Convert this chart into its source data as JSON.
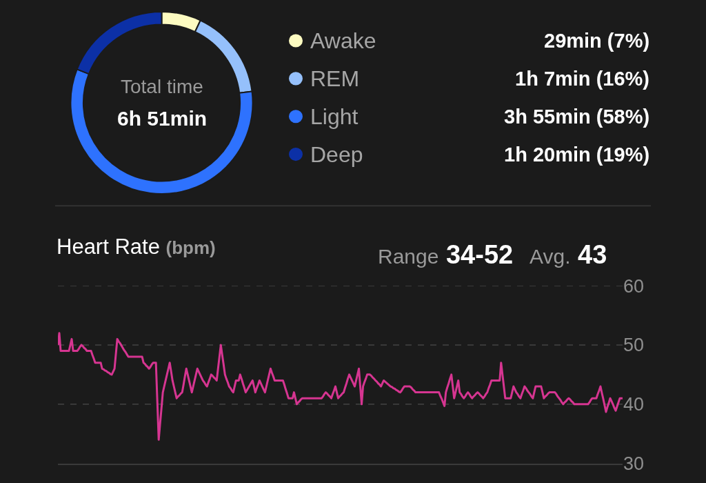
{
  "chart_data": [
    {
      "type": "donut",
      "categories": [
        "Awake",
        "REM",
        "Light",
        "Deep"
      ],
      "values": [
        7,
        16,
        58,
        19
      ],
      "colors": [
        "#fdfbc1",
        "#95c0fb",
        "#2e72fe",
        "#0c30a6"
      ],
      "value_labels": [
        "29min (7%)",
        "1h 7min (16%)",
        "3h 55min (58%)",
        "1h 20min (19%)"
      ],
      "annotations": [
        "Total time",
        "6h 51min"
      ],
      "legend": "right"
    },
    {
      "type": "line",
      "title": "Heart Rate (bpm)",
      "annotations": [
        "Range 34-52",
        "Avg. 43"
      ],
      "categories": [
        null,
        null,
        null,
        null,
        null,
        null,
        null,
        null,
        null,
        null,
        null,
        null,
        null,
        null,
        null,
        null,
        null,
        null,
        null,
        null,
        null,
        null,
        null,
        null,
        null,
        null,
        null,
        null,
        null,
        null,
        null,
        null,
        null,
        null,
        null,
        null,
        null,
        null,
        null,
        null,
        null,
        null,
        null,
        null,
        null,
        null,
        null,
        null,
        null,
        null,
        null,
        null,
        null,
        null,
        null,
        null,
        null,
        null,
        null,
        null,
        null,
        null,
        null,
        null,
        null,
        null,
        null,
        null,
        null,
        null,
        null,
        null,
        null,
        null,
        null,
        null,
        null,
        null,
        null,
        null,
        null,
        null,
        null,
        null,
        null,
        null,
        null,
        null,
        null,
        null,
        null,
        null,
        null,
        null,
        null,
        null,
        null,
        null,
        null,
        null,
        null,
        null,
        null,
        null,
        null,
        null,
        null,
        null,
        null,
        null,
        null,
        null,
        null,
        null,
        null,
        null,
        null,
        null,
        null,
        null,
        null,
        null,
        null,
        null,
        null,
        null,
        null,
        null,
        null,
        null,
        null,
        null,
        null,
        null,
        null,
        null,
        null,
        null,
        null,
        null,
        null,
        null,
        null,
        null,
        null,
        null,
        null,
        null,
        null,
        null,
        null,
        null,
        null,
        null,
        null,
        null,
        null,
        null,
        null,
        null,
        null,
        null,
        null,
        null,
        null,
        null,
        null,
        null,
        null,
        null,
        null,
        null,
        null,
        null,
        null,
        null,
        null,
        null,
        null,
        null,
        null,
        null,
        null,
        null,
        null,
        null,
        null,
        null,
        null,
        null,
        null,
        null,
        null,
        null,
        null,
        null,
        null,
        null,
        null,
        null,
        null,
        null,
        null,
        null,
        null,
        null,
        null,
        null,
        null,
        null,
        null,
        null,
        null,
        null,
        null,
        null,
        null,
        null,
        null,
        null,
        null,
        null,
        null,
        null,
        null,
        null,
        null,
        null,
        null,
        null,
        null,
        null,
        null,
        null,
        null,
        null,
        null,
        null,
        null,
        null,
        null,
        null,
        null,
        null,
        null,
        null,
        null,
        null,
        null,
        null,
        null,
        null,
        null,
        null,
        null,
        null,
        null,
        null,
        null,
        null,
        null,
        null,
        null,
        null,
        null,
        null,
        null,
        null,
        null,
        null,
        null,
        null,
        null,
        null,
        null,
        null,
        null,
        null,
        null,
        null,
        null,
        null,
        null,
        null,
        null,
        null,
        null,
        null,
        null,
        null,
        null,
        null,
        null,
        null,
        null,
        null,
        null,
        null,
        null,
        null,
        null,
        null,
        null,
        null,
        null,
        null,
        null,
        null,
        null,
        null,
        null,
        null,
        null,
        null,
        null,
        null,
        null,
        null,
        null,
        null,
        null,
        null,
        null,
        null,
        null,
        null,
        null,
        null,
        null,
        null,
        null,
        null,
        null,
        null,
        null,
        null,
        null,
        null,
        null,
        null,
        null,
        null,
        null,
        null,
        null,
        null,
        null,
        null,
        null,
        null,
        null,
        null,
        null,
        null,
        null,
        null,
        null,
        null,
        null,
        null,
        null,
        null,
        null,
        null,
        null,
        null,
        null,
        null,
        null,
        null,
        null,
        null,
        null,
        null,
        null,
        null,
        null,
        null,
        null,
        null,
        null,
        null,
        null,
        null,
        null,
        null,
        null,
        null,
        null,
        null,
        null,
        null,
        null,
        null,
        null,
        null,
        null,
        null,
        null,
        null,
        null,
        null,
        null,
        null,
        null,
        null,
        null,
        null,
        null,
        null
      ],
      "series": [
        {
          "color": "#d63591",
          "values": [
            50,
            52,
            49,
            49,
            49,
            49,
            49,
            49,
            49,
            50,
            51,
            49,
            49,
            49,
            49,
            49.3,
            49.7,
            50,
            49.8,
            49.5,
            49.3,
            49,
            49,
            49,
            49,
            48.3,
            47.7,
            47,
            47,
            47,
            47,
            47,
            46,
            45.9,
            45.7,
            45.6,
            45.4,
            45.3,
            45.1,
            45,
            45.5,
            46,
            48.5,
            51,
            50.6,
            50.3,
            49.9,
            49.5,
            49.1,
            48.8,
            48.4,
            48,
            48,
            48,
            48,
            48,
            48,
            48,
            48,
            48,
            48,
            48,
            47,
            46.8,
            46.5,
            46.3,
            46,
            46.3,
            46.7,
            47,
            47,
            47,
            40.5,
            34,
            36.7,
            39.3,
            42,
            43,
            44,
            45,
            46,
            47,
            45.5,
            44,
            43,
            42,
            41,
            41.3,
            41.5,
            41.8,
            42,
            43.3,
            44.7,
            46,
            45,
            44,
            43,
            42,
            43,
            44,
            45,
            46,
            45.5,
            45,
            44.5,
            44,
            43.7,
            43.3,
            43,
            43.7,
            44.3,
            45,
            44.8,
            44.5,
            44.3,
            44,
            46,
            48,
            50,
            48.3,
            46.7,
            45,
            44.3,
            43.7,
            43,
            42.7,
            42.3,
            42,
            43,
            44,
            44,
            44,
            45,
            44.3,
            43.5,
            42.8,
            42,
            42.4,
            42.8,
            43.2,
            43.6,
            44,
            43,
            42,
            42.7,
            43.3,
            44,
            43.5,
            43,
            42.5,
            42,
            43,
            44,
            45,
            46,
            45.3,
            44.7,
            44,
            44,
            44,
            44,
            44,
            44,
            44,
            43.3,
            42.5,
            41.8,
            41,
            41,
            41,
            41,
            42,
            41,
            40,
            40.3,
            40.5,
            40.8,
            41,
            41,
            41,
            41,
            41,
            41,
            41,
            41,
            41,
            41,
            41,
            41,
            41,
            41,
            41,
            41.3,
            41.7,
            42,
            41.8,
            41.5,
            41.3,
            41,
            41.7,
            42.3,
            43,
            42,
            41,
            41.3,
            41.5,
            41.8,
            42,
            42.8,
            43.5,
            44.3,
            45,
            44.5,
            44,
            43.5,
            43,
            44,
            45,
            46,
            43,
            40,
            43,
            43.7,
            44.3,
            45,
            45,
            45,
            44.8,
            44.5,
            44.3,
            44,
            43.8,
            43.5,
            43.3,
            43,
            43.5,
            44,
            43.8,
            43.6,
            43.4,
            43.2,
            43,
            42.9,
            42.7,
            42.6,
            42.4,
            42.3,
            42.1,
            42,
            42.3,
            42.7,
            43,
            43,
            43,
            43,
            43,
            42.8,
            42.5,
            42.3,
            42,
            42,
            42,
            42,
            42,
            42,
            42,
            42,
            42,
            42,
            42,
            42,
            42,
            42,
            42,
            42,
            42,
            42,
            41.4,
            40.9,
            40.3,
            39.7,
            42,
            42.8,
            43.5,
            44.3,
            45,
            43,
            41,
            42,
            43,
            44,
            42,
            41.7,
            41.3,
            41,
            41.3,
            41.7,
            42,
            41.7,
            41.3,
            41,
            41.3,
            41.5,
            41.8,
            42,
            41.8,
            41.5,
            41.3,
            41,
            41.3,
            41.7,
            42,
            42.7,
            43.3,
            44,
            44,
            44,
            44,
            44,
            44,
            44,
            47,
            45,
            43,
            41,
            41,
            41,
            41,
            41,
            42,
            43,
            42.5,
            42,
            41.7,
            41.3,
            41,
            41.7,
            42.3,
            43,
            42.7,
            42.3,
            42,
            41.7,
            41.3,
            41,
            42,
            43,
            43,
            43,
            43,
            43,
            42,
            41,
            41.3,
            41.5,
            41.8,
            42,
            42,
            42,
            42,
            42,
            41.7,
            41.3,
            41,
            40.7,
            40.3,
            40,
            40.3,
            40.5,
            40.8,
            41,
            40.8,
            40.5,
            40.3,
            40,
            40,
            40,
            40,
            40,
            40,
            40,
            40,
            40,
            40,
            40,
            40.3,
            40.7,
            41,
            41,
            41,
            41,
            41.7,
            42.3,
            43,
            41.9,
            40.9,
            39.8,
            38.7,
            39.5,
            40.2,
            41,
            40.5,
            40,
            39.4,
            38.9,
            39.6,
            40.3,
            41,
            41,
            41
          ]
        }
      ],
      "ylim": [
        30,
        60
      ],
      "yticks": [
        30,
        40,
        50,
        60
      ],
      "grid": "y",
      "tick_labels": "y",
      "line_style": "solid"
    }
  ]
}
